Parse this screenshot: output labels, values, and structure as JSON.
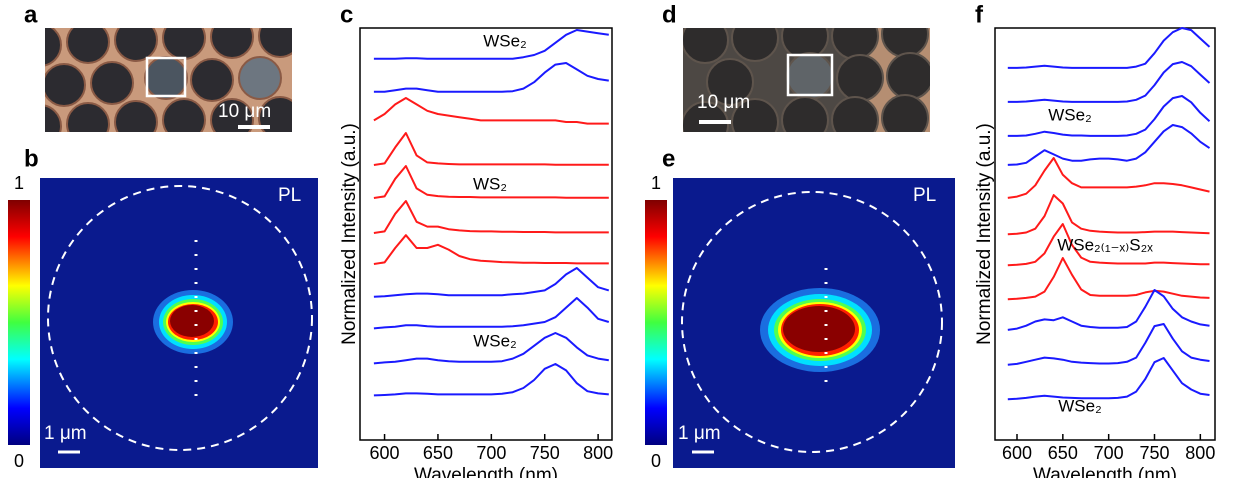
{
  "panel_labels": [
    "a",
    "b",
    "c",
    "d",
    "e",
    "f"
  ],
  "micrographs": [
    {
      "scale_bar": "10 μm"
    },
    {
      "scale_bar": "10 μm"
    }
  ],
  "pl_maps": [
    {
      "label": "PL",
      "scale_bar": "1 μm",
      "colorbar_ticks": [
        1,
        0
      ]
    },
    {
      "label": "PL",
      "scale_bar": "1 μm",
      "colorbar_ticks": [
        1,
        0
      ]
    }
  ],
  "chart_data": [
    {
      "type": "line",
      "xlabel": "Wavelength (nm)",
      "ylabel": "Normalized Intensity (a.u.)",
      "xlim": [
        577,
        813
      ],
      "xticks": [
        600,
        650,
        700,
        750,
        800
      ],
      "annotations": [
        "WSe₂",
        "WS₂",
        "WSe₂"
      ],
      "x": [
        590,
        600,
        610,
        620,
        630,
        640,
        650,
        660,
        670,
        680,
        690,
        700,
        710,
        720,
        730,
        740,
        750,
        760,
        770,
        780,
        790,
        800,
        810
      ],
      "series": [
        {
          "color": "#1a1aff",
          "values": [
            0.1,
            0.1,
            0.1,
            0.12,
            0.12,
            0.1,
            0.1,
            0.1,
            0.1,
            0.1,
            0.1,
            0.1,
            0.1,
            0.1,
            0.15,
            0.22,
            0.35,
            0.6,
            0.85,
            1,
            0.95,
            0.9,
            0.85
          ]
        },
        {
          "color": "#1a1aff",
          "values": [
            0.1,
            0.1,
            0.15,
            0.2,
            0.2,
            0.15,
            0.1,
            0.1,
            0.1,
            0.1,
            0.1,
            0.1,
            0.1,
            0.12,
            0.2,
            0.4,
            0.7,
            0.95,
            1,
            0.8,
            0.6,
            0.5,
            0.45
          ]
        },
        {
          "color": "#ff1a1a",
          "values": [
            0.3,
            0.5,
            0.8,
            1,
            0.8,
            0.6,
            0.5,
            0.45,
            0.4,
            0.35,
            0.3,
            0.3,
            0.3,
            0.3,
            0.3,
            0.3,
            0.3,
            0.3,
            0.25,
            0.25,
            0.2,
            0.2,
            0.2
          ]
        },
        {
          "color": "#ff1a1a",
          "values": [
            0,
            0.05,
            0.55,
            1,
            0.3,
            0.08,
            0.05,
            0.03,
            0.02,
            0.02,
            0.02,
            0.02,
            0.02,
            0.02,
            0.02,
            0.02,
            0.02,
            0.01,
            0.01,
            0.01,
            0.01,
            0.01,
            0.01
          ]
        },
        {
          "color": "#ff1a1a",
          "values": [
            0,
            0.05,
            0.6,
            1,
            0.3,
            0.1,
            0.06,
            0.04,
            0.03,
            0.03,
            0.02,
            0.02,
            0.02,
            0.02,
            0.02,
            0.02,
            0.02,
            0.02,
            0.01,
            0.01,
            0.01,
            0.01,
            0.01
          ]
        },
        {
          "color": "#ff1a1a",
          "values": [
            0,
            0.05,
            0.6,
            1,
            0.35,
            0.2,
            0.2,
            0.12,
            0.08,
            0.06,
            0.05,
            0.05,
            0.04,
            0.04,
            0.03,
            0.03,
            0.03,
            0.02,
            0.02,
            0.02,
            0.02,
            0.02,
            0.02
          ]
        },
        {
          "color": "#ff1a1a",
          "values": [
            0,
            0.05,
            0.5,
            0.9,
            0.5,
            0.5,
            0.6,
            0.45,
            0.25,
            0.15,
            0.1,
            0.08,
            0.06,
            0.05,
            0.04,
            0.04,
            0.03,
            0.03,
            0.03,
            0.02,
            0.02,
            0.02,
            0.02
          ]
        },
        {
          "color": "#1a1aff",
          "values": [
            0.1,
            0.12,
            0.15,
            0.18,
            0.2,
            0.2,
            0.18,
            0.15,
            0.15,
            0.15,
            0.15,
            0.15,
            0.15,
            0.18,
            0.2,
            0.25,
            0.3,
            0.5,
            0.8,
            1,
            0.7,
            0.4,
            0.3
          ]
        },
        {
          "color": "#1a1aff",
          "values": [
            0.05,
            0.08,
            0.1,
            0.15,
            0.15,
            0.12,
            0.1,
            0.1,
            0.1,
            0.1,
            0.1,
            0.1,
            0.1,
            0.12,
            0.15,
            0.2,
            0.25,
            0.4,
            0.7,
            1,
            0.7,
            0.35,
            0.25
          ]
        },
        {
          "color": "#1a1aff",
          "values": [
            0.05,
            0.08,
            0.1,
            0.15,
            0.2,
            0.2,
            0.15,
            0.12,
            0.1,
            0.1,
            0.1,
            0.1,
            0.12,
            0.2,
            0.35,
            0.6,
            0.85,
            1,
            0.85,
            0.55,
            0.3,
            0.2,
            0.15
          ]
        },
        {
          "color": "#1a1aff",
          "values": [
            0.02,
            0.03,
            0.05,
            0.08,
            0.08,
            0.07,
            0.05,
            0.05,
            0.05,
            0.05,
            0.05,
            0.05,
            0.07,
            0.12,
            0.25,
            0.5,
            0.85,
            1,
            0.8,
            0.4,
            0.15,
            0.08,
            0.05
          ]
        }
      ]
    },
    {
      "type": "line",
      "xlabel": "Wavelength (nm)",
      "ylabel": "Normalized Intensity (a.u.)",
      "xlim": [
        576,
        816
      ],
      "xticks": [
        600,
        650,
        700,
        750,
        800
      ],
      "annotations": [
        "WSe₂",
        "WSe₂₍₁₋ₓ₎S₂ₓ",
        "WSe₂"
      ],
      "x": [
        590,
        600,
        610,
        620,
        630,
        640,
        650,
        660,
        670,
        680,
        690,
        700,
        710,
        720,
        730,
        740,
        750,
        760,
        770,
        780,
        790,
        800,
        810
      ],
      "series": [
        {
          "color": "#1a1aff",
          "values": [
            0.05,
            0.05,
            0.06,
            0.08,
            0.1,
            0.08,
            0.06,
            0.05,
            0.05,
            0.05,
            0.05,
            0.05,
            0.05,
            0.05,
            0.08,
            0.15,
            0.4,
            0.7,
            0.9,
            1,
            0.95,
            0.75,
            0.55
          ]
        },
        {
          "color": "#1a1aff",
          "values": [
            0.05,
            0.05,
            0.06,
            0.08,
            0.1,
            0.08,
            0.06,
            0.05,
            0.05,
            0.05,
            0.05,
            0.05,
            0.05,
            0.06,
            0.1,
            0.2,
            0.45,
            0.75,
            0.95,
            1,
            0.9,
            0.7,
            0.5
          ]
        },
        {
          "color": "#1a1aff",
          "values": [
            0.05,
            0.05,
            0.06,
            0.1,
            0.15,
            0.12,
            0.08,
            0.06,
            0.06,
            0.05,
            0.05,
            0.05,
            0.05,
            0.06,
            0.1,
            0.2,
            0.45,
            0.75,
            0.95,
            1,
            0.85,
            0.6,
            0.4
          ]
        },
        {
          "color": "#1a1aff",
          "values": [
            0.05,
            0.06,
            0.1,
            0.25,
            0.4,
            0.3,
            0.2,
            0.15,
            0.15,
            0.18,
            0.2,
            0.2,
            0.18,
            0.15,
            0.2,
            0.35,
            0.6,
            0.85,
            1,
            0.95,
            0.8,
            0.6,
            0.45
          ]
        },
        {
          "color": "#ff1a1a",
          "values": [
            0.05,
            0.08,
            0.15,
            0.35,
            0.7,
            1,
            0.6,
            0.4,
            0.3,
            0.3,
            0.3,
            0.3,
            0.3,
            0.3,
            0.32,
            0.35,
            0.4,
            0.4,
            0.38,
            0.35,
            0.3,
            0.25,
            0.2
          ]
        },
        {
          "color": "#ff1a1a",
          "values": [
            0.02,
            0.03,
            0.06,
            0.15,
            0.45,
            0.95,
            0.75,
            0.3,
            0.15,
            0.1,
            0.08,
            0.07,
            0.06,
            0.06,
            0.06,
            0.07,
            0.08,
            0.08,
            0.08,
            0.07,
            0.06,
            0.05,
            0.04
          ]
        },
        {
          "color": "#ff1a1a",
          "values": [
            0.02,
            0.03,
            0.05,
            0.1,
            0.3,
            0.7,
            1,
            0.5,
            0.2,
            0.1,
            0.08,
            0.07,
            0.06,
            0.06,
            0.06,
            0.06,
            0.08,
            0.08,
            0.07,
            0.06,
            0.05,
            0.04,
            0.04
          ]
        },
        {
          "color": "#ff1a1a",
          "values": [
            0.02,
            0.03,
            0.05,
            0.08,
            0.2,
            0.55,
            1,
            0.6,
            0.25,
            0.12,
            0.1,
            0.1,
            0.1,
            0.1,
            0.12,
            0.18,
            0.22,
            0.2,
            0.15,
            0.1,
            0.08,
            0.06,
            0.05
          ]
        },
        {
          "color": "#1a1aff",
          "values": [
            0.05,
            0.08,
            0.15,
            0.25,
            0.3,
            0.28,
            0.35,
            0.25,
            0.15,
            0.12,
            0.1,
            0.1,
            0.1,
            0.12,
            0.25,
            0.6,
            1,
            0.85,
            0.55,
            0.35,
            0.25,
            0.18,
            0.15
          ]
        },
        {
          "color": "#1a1aff",
          "values": [
            0.03,
            0.05,
            0.1,
            0.15,
            0.2,
            0.18,
            0.15,
            0.1,
            0.08,
            0.07,
            0.06,
            0.06,
            0.07,
            0.1,
            0.2,
            0.55,
            0.95,
            1,
            0.65,
            0.35,
            0.2,
            0.15,
            0.12
          ]
        },
        {
          "color": "#1a1aff",
          "values": [
            0.02,
            0.03,
            0.05,
            0.08,
            0.1,
            0.08,
            0.06,
            0.05,
            0.04,
            0.04,
            0.04,
            0.04,
            0.05,
            0.08,
            0.2,
            0.5,
            0.9,
            1,
            0.7,
            0.4,
            0.25,
            0.15,
            0.12
          ]
        }
      ]
    }
  ]
}
